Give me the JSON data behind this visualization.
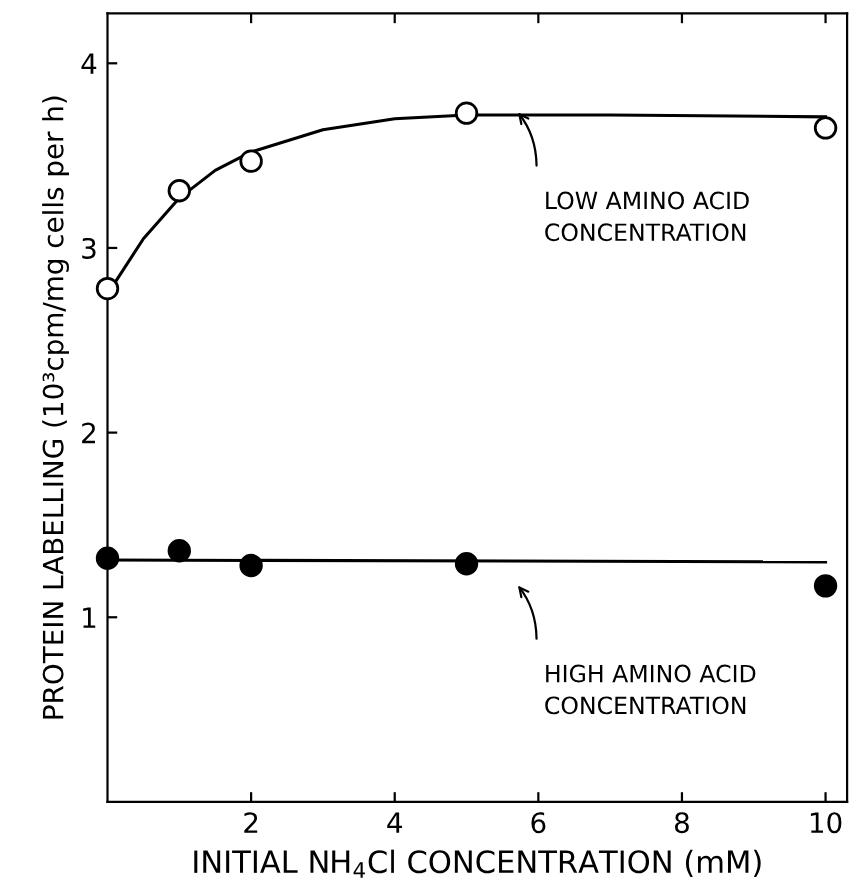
{
  "chart_data": {
    "type": "scatter",
    "xlabel": "INITIAL NH$_{4}$Cl CONCENTRATION (mM)",
    "ylabel": "PROTEIN LABELLING (10³cpm/mg cells per h)",
    "x": [
      0,
      1,
      2,
      5,
      10
    ],
    "series": [
      {
        "type": "line",
        "x": [
          0,
          0.5,
          1,
          1.5,
          2,
          3,
          4,
          5,
          7,
          10
        ],
        "values": [
          2.75,
          3.05,
          3.27,
          3.42,
          3.52,
          3.64,
          3.7,
          3.72,
          3.72,
          3.71
        ],
        "color": "#000000",
        "marker": "none"
      },
      {
        "type": "line",
        "x": [
          0,
          10
        ],
        "values": [
          1.31,
          1.3
        ],
        "color": "#000000",
        "marker": "none"
      },
      {
        "values": [
          2.78,
          3.31,
          3.47,
          3.73,
          3.65
        ],
        "color": "#ffffff",
        "marker": "circle"
      },
      {
        "values": [
          1.32,
          1.36,
          1.28,
          1.29,
          1.17
        ],
        "color": "#000000",
        "marker": "circle"
      }
    ],
    "xlim": [
      0,
      10.3
    ],
    "ylim": [
      0,
      4.27
    ],
    "xticks": [
      2,
      4,
      6,
      8,
      10
    ],
    "yticks": [
      1,
      2,
      3,
      4
    ],
    "grid": false,
    "legend": false,
    "annotations": [
      "LOW AMINO ACID\nCONCENTRATION",
      "HIGH AMINO ACID\nCONCENTRATION"
    ]
  }
}
